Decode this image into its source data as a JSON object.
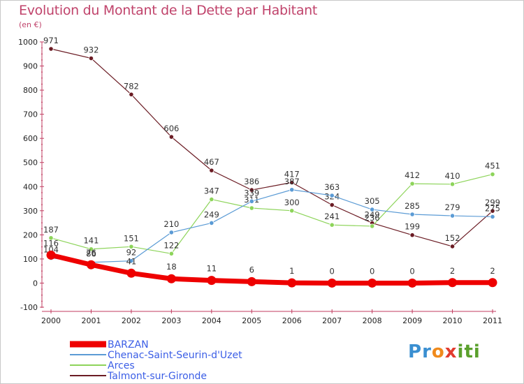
{
  "title": "Evolution du Montant de la Dette par Habitant",
  "subtitle": "(en €)",
  "logo": {
    "text": "Proxiti",
    "letters": [
      "P",
      "r",
      "o",
      "x",
      "i",
      "t",
      "i"
    ],
    "colors": [
      "#3a8fd1",
      "#3a8fd1",
      "#f08a1c",
      "#e23b2e",
      "#5aa02c",
      "#5aa02c",
      "#5aa02c"
    ]
  },
  "chart_data": {
    "type": "line",
    "x": [
      "2000",
      "2001",
      "2002",
      "2003",
      "2004",
      "2005",
      "2006",
      "2007",
      "2008",
      "2009",
      "2010",
      "2011"
    ],
    "ylim": [
      -100,
      1000
    ],
    "yticks": [
      "-100",
      "0",
      "100",
      "200",
      "300",
      "400",
      "500",
      "600",
      "700",
      "800",
      "900",
      "1000"
    ],
    "grid": false,
    "legend_position": "bottom-left",
    "series": [
      {
        "name": "Talmont-sur-Gironde",
        "color": "#6b1c24",
        "width": 1.2,
        "values": [
          971,
          932,
          782,
          606,
          467,
          386,
          417,
          324,
          249,
          199,
          152,
          299
        ],
        "labels": [
          "971",
          "932",
          "782",
          "606",
          "467",
          "386",
          "417",
          "324",
          "249",
          "199",
          "152",
          "299"
        ]
      },
      {
        "name": "Arces",
        "color": "#8dd45a",
        "width": 1.2,
        "values": [
          187,
          141,
          151,
          122,
          347,
          311,
          300,
          241,
          236,
          412,
          410,
          451
        ],
        "labels": [
          "187",
          "141",
          "151",
          "122",
          "347",
          "311",
          "300",
          "241",
          "236",
          "412",
          "410",
          "451"
        ]
      },
      {
        "name": "Chenac-Saint-Seurin-d'Uzet",
        "color": "#5b9bd5",
        "width": 1.2,
        "values": [
          104,
          86,
          92,
          210,
          249,
          339,
          387,
          363,
          305,
          285,
          279,
          275
        ],
        "labels": [
          "104",
          "86",
          "92",
          "210",
          "249",
          "339",
          "387",
          "363",
          "305",
          "285",
          "279",
          "275"
        ]
      },
      {
        "name": "BARZAN",
        "color": "#ee0000",
        "width": 7,
        "values": [
          116,
          76,
          41,
          18,
          11,
          6,
          1,
          0,
          0,
          0,
          2,
          2
        ],
        "labels": [
          "116",
          "76",
          "41",
          "18",
          "11",
          "6",
          "1",
          "0",
          "0",
          "0",
          "2",
          "2"
        ]
      }
    ],
    "legend_order": [
      "BARZAN",
      "Chenac-Saint-Seurin-d'Uzet",
      "Arces",
      "Talmont-sur-Gironde"
    ]
  }
}
